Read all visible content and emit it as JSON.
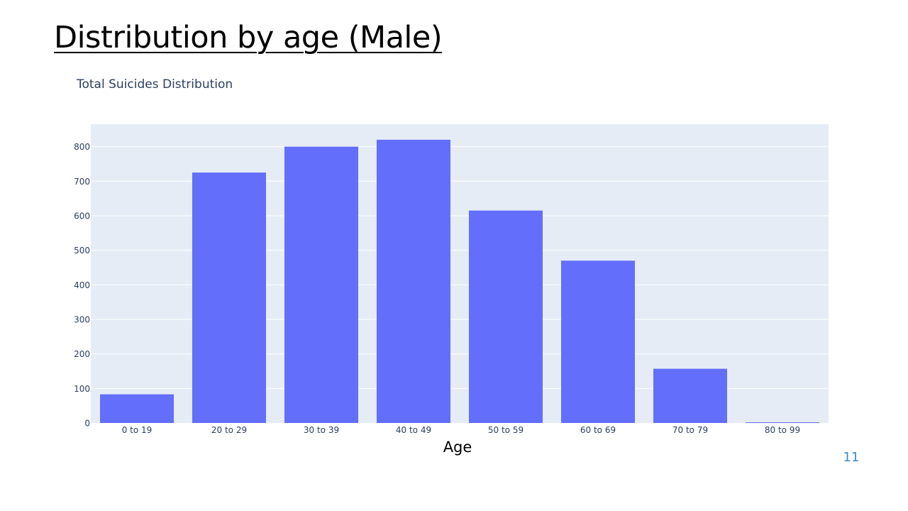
{
  "slide": {
    "title": "Distribution by age (Male)",
    "page_number": "11"
  },
  "colors": {
    "plot_background": "#e5ecf6",
    "bar": "#636efa",
    "gridline": "#ffffff",
    "tick_text": "#2a3f5f",
    "page_number": "#3a8dc9"
  },
  "chart_data": {
    "type": "bar",
    "title": "Total Suicides Distribution",
    "xlabel": "Age",
    "ylabel": "",
    "categories": [
      "0 to 19",
      "20 to 29",
      "30 to 39",
      "40 to 49",
      "50 to 59",
      "60 to 69",
      "70 to 79",
      "80 to 99"
    ],
    "values": [
      83,
      725,
      800,
      820,
      615,
      470,
      157,
      2
    ],
    "ylim": [
      0,
      865
    ],
    "yticks": [
      0,
      100,
      200,
      300,
      400,
      500,
      600,
      700,
      800
    ],
    "grid": true,
    "legend": "none"
  }
}
